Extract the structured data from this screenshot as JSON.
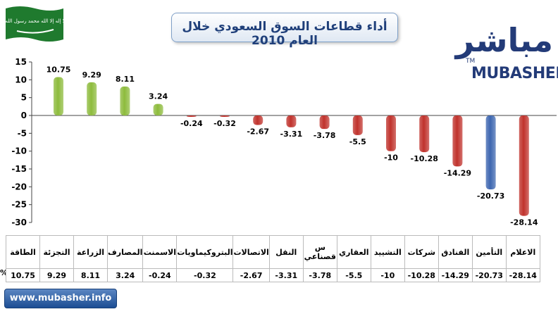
{
  "title": "أداء قطاعات السوق السعودي خلال العام 2010",
  "flag": {
    "background": "#1f7a2e",
    "inscription": "لا إله إلا الله محمد رسول الله"
  },
  "logo": {
    "arabic": "مباشر",
    "english": "MUBASHER",
    "tm": "TM"
  },
  "website": "www.mubasher.info",
  "percent_label": "%",
  "colors": {
    "positive": "#8dbb3c",
    "negative": "#c0322c",
    "highlight": "#3d66b0",
    "title": "#1f3f7a"
  },
  "chart_data": {
    "type": "bar",
    "categories": [
      "الطاقة",
      "التجزئة",
      "الزراعة",
      "المصارف",
      "الاسمنت",
      "البتروكيماويات",
      "الاتصالات",
      "النقل",
      "س قصناعي",
      "العقاري",
      "التشييد",
      "شركات",
      "الفنادق",
      "التأمين",
      "الاعلام"
    ],
    "values": [
      10.75,
      9.29,
      8.11,
      3.24,
      -0.24,
      -0.32,
      -2.67,
      -3.31,
      -3.78,
      -5.5,
      -10,
      -10.28,
      -14.29,
      -20.73,
      -28.14
    ],
    "data_labels": [
      "10.75",
      "9.29",
      "8.11",
      "3.24",
      "-0.24",
      "-0.32",
      "-2.67",
      "-3.31",
      "-3.78",
      "-5.5",
      "-10",
      "-10.28",
      "-14.29",
      "-20.73",
      "-28.14"
    ],
    "highlight_index": 13,
    "ylim": [
      -30,
      15
    ],
    "yticks": [
      15,
      10,
      5,
      0,
      -5,
      -10,
      -15,
      -20,
      -25,
      -30
    ],
    "grid": false
  }
}
